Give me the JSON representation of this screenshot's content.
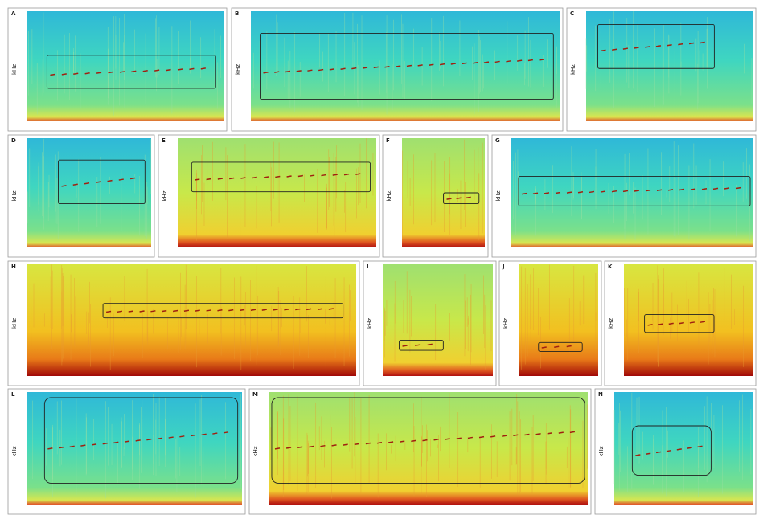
{
  "panels": [
    {
      "label": "A",
      "ylabel": "kHz"
    },
    {
      "label": "B",
      "ylabel": "kHz"
    },
    {
      "label": "C",
      "ylabel": "kHz"
    },
    {
      "label": "D",
      "ylabel": "kHz"
    },
    {
      "label": "E",
      "ylabel": "kHz"
    },
    {
      "label": "F",
      "ylabel": "kHz"
    },
    {
      "label": "G",
      "ylabel": "kHz"
    },
    {
      "label": "H",
      "ylabel": "kHz"
    },
    {
      "label": "I",
      "ylabel": "kHz"
    },
    {
      "label": "J",
      "ylabel": "kHz"
    },
    {
      "label": "K",
      "ylabel": "kHz"
    },
    {
      "label": "L",
      "ylabel": "kHz"
    },
    {
      "label": "M",
      "ylabel": "kHz"
    },
    {
      "label": "N",
      "ylabel": "kHz"
    }
  ]
}
